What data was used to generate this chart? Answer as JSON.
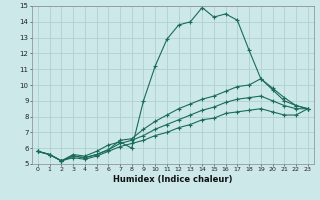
{
  "xlabel": "Humidex (Indice chaleur)",
  "bg_color": "#cce8e8",
  "line_color": "#1a6b5a",
  "grid_color": "#b0d0d0",
  "xlim": [
    -0.5,
    23.5
  ],
  "ylim": [
    5,
    15
  ],
  "xticks": [
    0,
    1,
    2,
    3,
    4,
    5,
    6,
    7,
    8,
    9,
    10,
    11,
    12,
    13,
    14,
    15,
    16,
    17,
    18,
    19,
    20,
    21,
    22,
    23
  ],
  "yticks": [
    5,
    6,
    7,
    8,
    9,
    10,
    11,
    12,
    13,
    14,
    15
  ],
  "series": [
    {
      "x": [
        0,
        1,
        2,
        3,
        4,
        5,
        6,
        7,
        8,
        9,
        10,
        11,
        12,
        13,
        14,
        15,
        16,
        17,
        18,
        19,
        20,
        21,
        22,
        23
      ],
      "y": [
        5.8,
        5.6,
        5.2,
        5.6,
        5.5,
        5.8,
        6.2,
        6.4,
        6.0,
        9.0,
        11.2,
        12.9,
        13.8,
        14.0,
        14.9,
        14.3,
        14.5,
        14.1,
        12.2,
        10.4,
        9.7,
        9.0,
        8.7,
        8.5
      ]
    },
    {
      "x": [
        0,
        1,
        2,
        3,
        4,
        5,
        6,
        7,
        8,
        9,
        10,
        11,
        12,
        13,
        14,
        15,
        16,
        17,
        18,
        19,
        20,
        21,
        22,
        23
      ],
      "y": [
        5.8,
        5.6,
        5.2,
        5.5,
        5.4,
        5.6,
        5.9,
        6.5,
        6.6,
        7.2,
        7.7,
        8.1,
        8.5,
        8.8,
        9.1,
        9.3,
        9.6,
        9.9,
        10.0,
        10.4,
        9.8,
        9.2,
        8.7,
        8.5
      ]
    },
    {
      "x": [
        0,
        1,
        2,
        3,
        4,
        5,
        6,
        7,
        8,
        9,
        10,
        11,
        12,
        13,
        14,
        15,
        16,
        17,
        18,
        19,
        20,
        21,
        22,
        23
      ],
      "y": [
        5.8,
        5.6,
        5.2,
        5.5,
        5.4,
        5.6,
        5.9,
        6.3,
        6.5,
        6.8,
        7.2,
        7.5,
        7.8,
        8.1,
        8.4,
        8.6,
        8.9,
        9.1,
        9.2,
        9.3,
        9.0,
        8.7,
        8.5,
        8.5
      ]
    },
    {
      "x": [
        0,
        1,
        2,
        3,
        4,
        5,
        6,
        7,
        8,
        9,
        10,
        11,
        12,
        13,
        14,
        15,
        16,
        17,
        18,
        19,
        20,
        21,
        22,
        23
      ],
      "y": [
        5.8,
        5.6,
        5.2,
        5.4,
        5.3,
        5.5,
        5.8,
        6.1,
        6.3,
        6.5,
        6.8,
        7.0,
        7.3,
        7.5,
        7.8,
        7.9,
        8.2,
        8.3,
        8.4,
        8.5,
        8.3,
        8.1,
        8.1,
        8.5
      ]
    }
  ]
}
